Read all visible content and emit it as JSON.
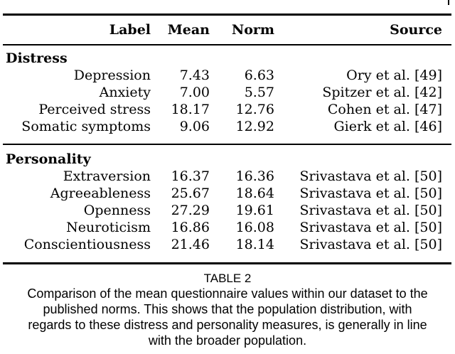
{
  "table": {
    "columns": {
      "label": "Label",
      "mean": "Mean",
      "norm": "Norm",
      "source": "Source"
    },
    "sections": [
      {
        "name": "Distress",
        "rows": [
          {
            "label": "Depression",
            "mean": "7.43",
            "norm": "6.63",
            "source": "Ory et al. [49]"
          },
          {
            "label": "Anxiety",
            "mean": "7.00",
            "norm": "5.57",
            "source": "Spitzer et al. [42]"
          },
          {
            "label": "Perceived stress",
            "mean": "18.17",
            "norm": "12.76",
            "source": "Cohen et al. [47]"
          },
          {
            "label": "Somatic symptoms",
            "mean": "9.06",
            "norm": "12.92",
            "source": "Gierk et al. [46]"
          }
        ]
      },
      {
        "name": "Personality",
        "rows": [
          {
            "label": "Extraversion",
            "mean": "16.37",
            "norm": "16.36",
            "source": "Srivastava et al. [50]"
          },
          {
            "label": "Agreeableness",
            "mean": "25.67",
            "norm": "18.64",
            "source": "Srivastava et al. [50]"
          },
          {
            "label": "Openness",
            "mean": "27.29",
            "norm": "19.61",
            "source": "Srivastava et al. [50]"
          },
          {
            "label": "Neuroticism",
            "mean": "16.86",
            "norm": "16.08",
            "source": "Srivastava et al. [50]"
          },
          {
            "label": "Conscientiousness",
            "mean": "21.46",
            "norm": "18.14",
            "source": "Srivastava et al. [50]"
          }
        ]
      }
    ]
  },
  "caption": {
    "label": "TABLE 2",
    "lines": [
      "Comparison of the mean questionnaire values within our dataset to the",
      "published norms. This shows that the population distribution, with",
      "regards to these distress and personality measures, is generally in line",
      "with the broader population."
    ]
  },
  "colors": {
    "text": "#000000",
    "background": "#ffffff"
  }
}
